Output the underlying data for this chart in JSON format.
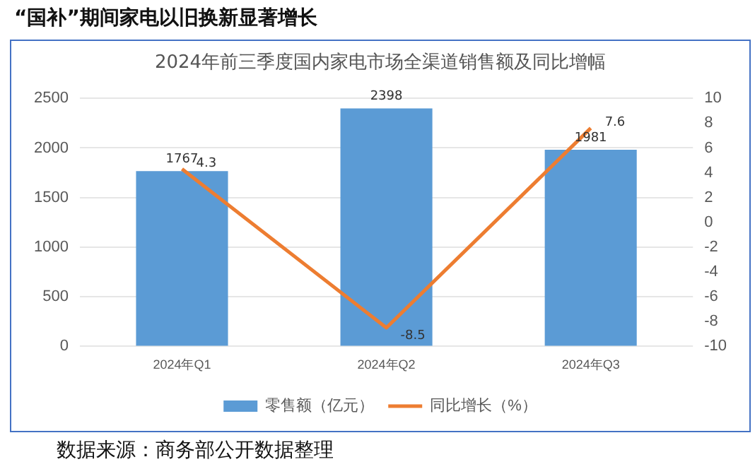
{
  "chart_data": {
    "type": "bar",
    "title": "“国补”期间家电以旧换新显著增长",
    "subtitle": "2024年前三季度国内家电市场全渠道销售额及同比增幅",
    "categories": [
      "2024年Q1",
      "2024年Q2",
      "2024年Q3"
    ],
    "series": [
      {
        "name": "零售额（亿元）",
        "color": "#5b9bd5",
        "values": [
          1767,
          2398,
          1981
        ]
      },
      {
        "name": "同比增长（%）",
        "type": "line",
        "axis": "y2",
        "color": "#ed7d31",
        "values": [
          4.3,
          -8.5,
          7.6
        ]
      }
    ],
    "ylim": [
      0,
      2500
    ],
    "yticks": [
      0,
      500,
      1000,
      1500,
      2000,
      2500
    ],
    "y2lim": [
      -10,
      10
    ],
    "y2ticks": [
      -10,
      -8,
      -6,
      -4,
      -2,
      0,
      2,
      4,
      6,
      8,
      10
    ],
    "grid": "y",
    "legend": "bottom",
    "marker": "none",
    "data_labels": true,
    "annotations": [
      "数据来源：商务部公开数据整理"
    ]
  }
}
